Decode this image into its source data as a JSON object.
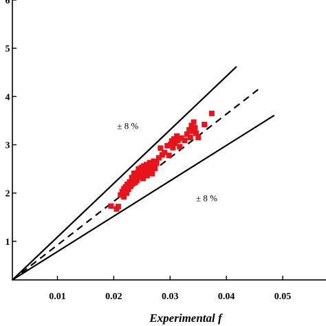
{
  "chart_data": {
    "type": "scatter",
    "xlabel": "Experimental f",
    "ylabel": "",
    "xlim": [
      0.002,
      0.055
    ],
    "ylim": [
      0.002,
      0.06
    ],
    "x_ticks": [
      0.01,
      0.02,
      0.03,
      0.04,
      0.05
    ],
    "x_tick_labels": [
      "0.01",
      "0.02",
      "0.03",
      "0.04",
      "0.05"
    ],
    "y_ticks": [
      0.01,
      0.02,
      0.03,
      0.04,
      0.05,
      0.06
    ],
    "y_tick_labels": [
      "1",
      "2",
      "3",
      "4",
      "5",
      "6"
    ],
    "grid": false,
    "marker_color": "#e8141c",
    "reference_lines": [
      {
        "kind": "upper-bound",
        "style": "solid",
        "x": [
          0.002,
          0.0418
        ],
        "y": [
          0.002,
          0.0462
        ]
      },
      {
        "kind": "parity",
        "style": "dashed",
        "x": [
          0.002,
          0.0458
        ],
        "y": [
          0.002,
          0.0416
        ]
      },
      {
        "kind": "lower-bound",
        "style": "solid",
        "x": [
          0.002,
          0.0485
        ],
        "y": [
          0.002,
          0.0361
        ]
      }
    ],
    "annotations": [
      {
        "text": "± 8 %",
        "x": 0.0225,
        "y": 0.0333
      },
      {
        "text": "± 8 %",
        "x": 0.0365,
        "y": 0.0183
      }
    ],
    "points": [
      [
        0.0195,
        0.0173
      ],
      [
        0.0205,
        0.0167
      ],
      [
        0.0208,
        0.0172
      ],
      [
        0.0212,
        0.0196
      ],
      [
        0.0215,
        0.0203
      ],
      [
        0.0218,
        0.0192
      ],
      [
        0.0218,
        0.0209
      ],
      [
        0.0221,
        0.0213
      ],
      [
        0.0223,
        0.02
      ],
      [
        0.0224,
        0.0218
      ],
      [
        0.0226,
        0.0208
      ],
      [
        0.0228,
        0.0223
      ],
      [
        0.023,
        0.0214
      ],
      [
        0.0232,
        0.0232
      ],
      [
        0.0233,
        0.0219
      ],
      [
        0.0235,
        0.0228
      ],
      [
        0.0236,
        0.0241
      ],
      [
        0.0238,
        0.0222
      ],
      [
        0.024,
        0.0235
      ],
      [
        0.0241,
        0.0226
      ],
      [
        0.0243,
        0.0243
      ],
      [
        0.0244,
        0.025
      ],
      [
        0.0246,
        0.0233
      ],
      [
        0.0247,
        0.0238
      ],
      [
        0.0249,
        0.0253
      ],
      [
        0.025,
        0.0244
      ],
      [
        0.0252,
        0.023
      ],
      [
        0.0253,
        0.0256
      ],
      [
        0.0255,
        0.024
      ],
      [
        0.0256,
        0.0248
      ],
      [
        0.0258,
        0.0259
      ],
      [
        0.0259,
        0.0236
      ],
      [
        0.0261,
        0.0252
      ],
      [
        0.0262,
        0.0244
      ],
      [
        0.0264,
        0.0263
      ],
      [
        0.0266,
        0.0249
      ],
      [
        0.0268,
        0.024
      ],
      [
        0.027,
        0.0256
      ],
      [
        0.0271,
        0.0266
      ],
      [
        0.0273,
        0.0251
      ],
      [
        0.0276,
        0.0262
      ],
      [
        0.028,
        0.0273
      ],
      [
        0.0283,
        0.0293
      ],
      [
        0.0286,
        0.0279
      ],
      [
        0.029,
        0.0284
      ],
      [
        0.0295,
        0.0298
      ],
      [
        0.0298,
        0.0278
      ],
      [
        0.0301,
        0.0301
      ],
      [
        0.0303,
        0.0308
      ],
      [
        0.0305,
        0.0294
      ],
      [
        0.0307,
        0.0312
      ],
      [
        0.0309,
        0.0303
      ],
      [
        0.0312,
        0.0318
      ],
      [
        0.0314,
        0.0309
      ],
      [
        0.0317,
        0.0296
      ],
      [
        0.032,
        0.0314
      ],
      [
        0.0326,
        0.0309
      ],
      [
        0.033,
        0.0322
      ],
      [
        0.0334,
        0.0331
      ],
      [
        0.0336,
        0.0315
      ],
      [
        0.0338,
        0.034
      ],
      [
        0.034,
        0.0328
      ],
      [
        0.0342,
        0.0347
      ],
      [
        0.0344,
        0.0335
      ],
      [
        0.0346,
        0.0324
      ],
      [
        0.035,
        0.0315
      ],
      [
        0.0361,
        0.0342
      ],
      [
        0.0374,
        0.0365
      ]
    ]
  }
}
